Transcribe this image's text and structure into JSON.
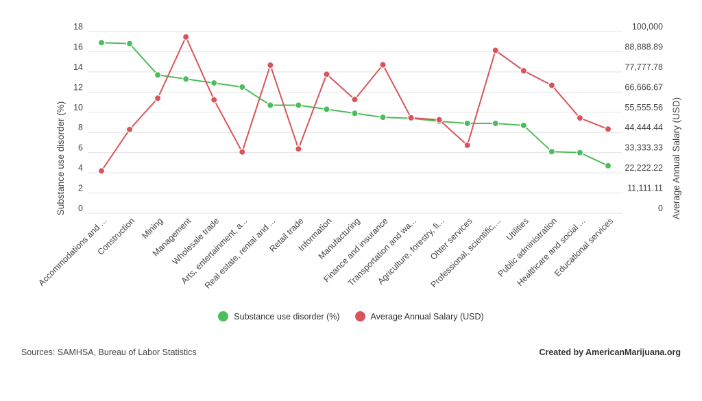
{
  "colors": {
    "substance": "#4dbd5b",
    "salary": "#d9545a"
  },
  "legend": {
    "substance_label": "Substance use disorder (%)",
    "salary_label": "Average Annual Salary (USD)"
  },
  "footer": {
    "sources": "Sources: SAMHSA,  Bureau of Labor Statistics",
    "credit": "Created by AmericanMarijuana.org"
  },
  "chart_data": {
    "type": "line",
    "ylabel": "Substance use disorder (%)",
    "y2label": "Average Annual Salary (USD)",
    "ylim": [
      0,
      18
    ],
    "y2lim": [
      0,
      100000
    ],
    "yticks": [
      "0",
      "2",
      "4",
      "6",
      "8",
      "10",
      "12",
      "14",
      "16",
      "18"
    ],
    "y2ticks": [
      "0",
      "11,111.11",
      "22,222.22",
      "33,333.33",
      "44,444.44",
      "55,555.56",
      "66,666.67",
      "77,777.78",
      "88,888.89",
      "100,000"
    ],
    "grid": true,
    "legend_position": "bottom",
    "categories": [
      "Accommodations and ...",
      "Construction",
      "Mining",
      "Management",
      "Wholesale trade",
      "Arts, entertainment, a...",
      "Real estate, rental and ...",
      "Retail trade",
      "Information",
      "Manufacturing",
      "Finance and insurance",
      "Transportation and wa...",
      "Agriculture, forestry, fi...",
      "Ohter services",
      "Professional, scientific,...",
      "Utilities",
      "Public administration",
      "Healthcare and social ...",
      "Educational services"
    ],
    "series": [
      {
        "name": "Substance use disorder (%)",
        "axis": "left",
        "values": [
          16.9,
          16.8,
          13.7,
          13.3,
          12.9,
          12.5,
          10.7,
          10.7,
          10.3,
          9.9,
          9.5,
          9.4,
          9.1,
          8.9,
          8.9,
          8.7,
          6.1,
          6.0,
          4.7
        ]
      },
      {
        "name": "Average Annual Salary (USD)",
        "axis": "right",
        "values": [
          23300,
          46100,
          63300,
          97000,
          62400,
          33700,
          81500,
          35400,
          76500,
          62600,
          81700,
          52500,
          51400,
          37400,
          89600,
          78400,
          70400,
          52400,
          46300
        ]
      }
    ]
  }
}
